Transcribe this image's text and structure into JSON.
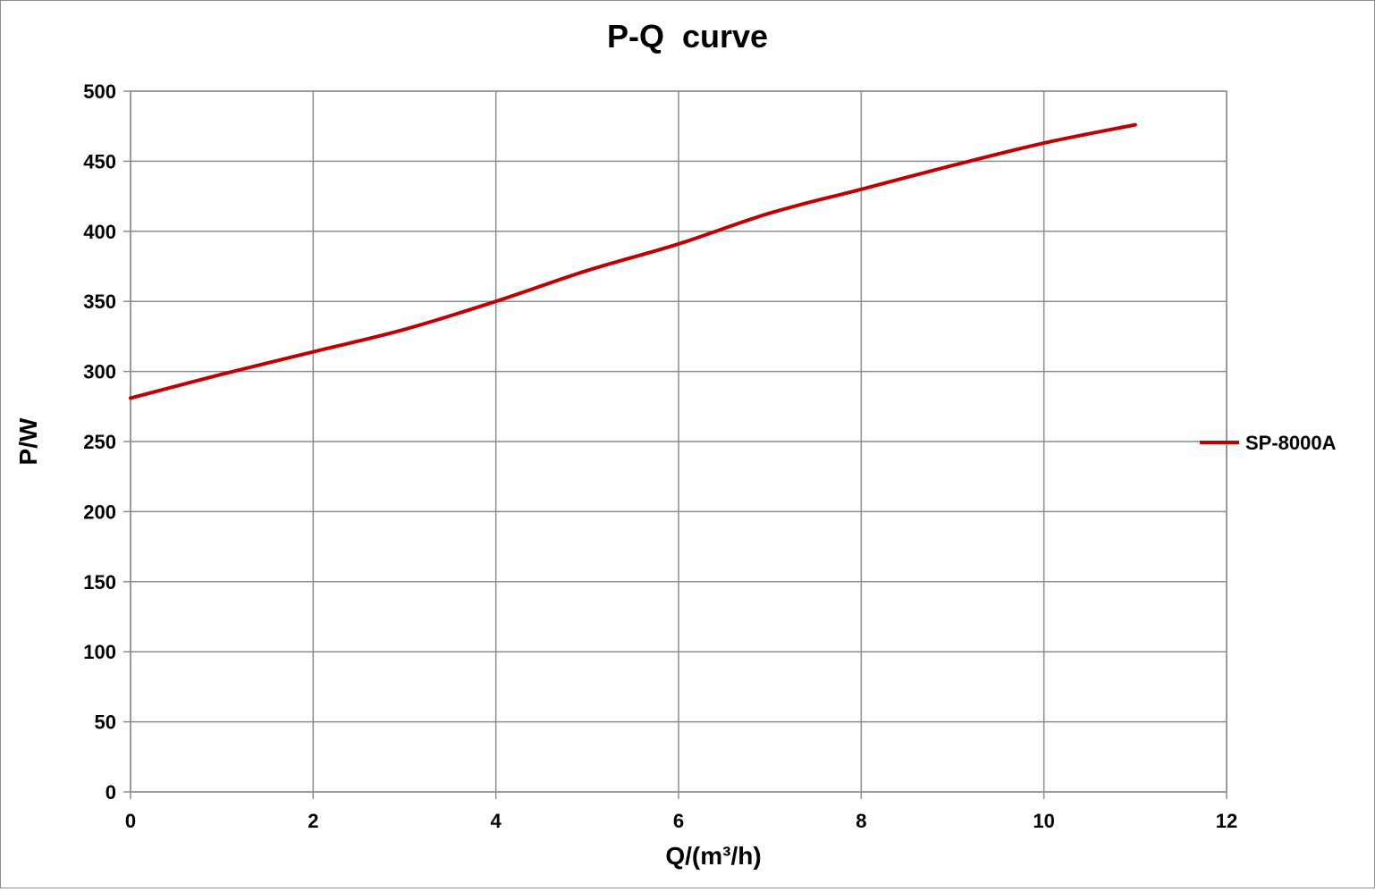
{
  "chart_data": {
    "type": "line",
    "title": "P-Q  curve",
    "xlabel": "Q/(m³/h)",
    "ylabel": "P/W",
    "xlim": [
      0,
      12
    ],
    "ylim": [
      0,
      500
    ],
    "x_ticks": [
      0,
      2,
      4,
      6,
      8,
      10,
      12
    ],
    "y_ticks": [
      0,
      50,
      100,
      150,
      200,
      250,
      300,
      350,
      400,
      450,
      500
    ],
    "grid": true,
    "legend_position": "right",
    "series": [
      {
        "name": "SP-8000A",
        "color": "#c00000",
        "x": [
          0,
          1,
          2,
          3,
          4,
          5,
          6,
          7,
          8,
          9,
          10,
          11
        ],
        "y": [
          281,
          298,
          314,
          330,
          350,
          372,
          391,
          413,
          430,
          447,
          463,
          476
        ]
      }
    ]
  }
}
